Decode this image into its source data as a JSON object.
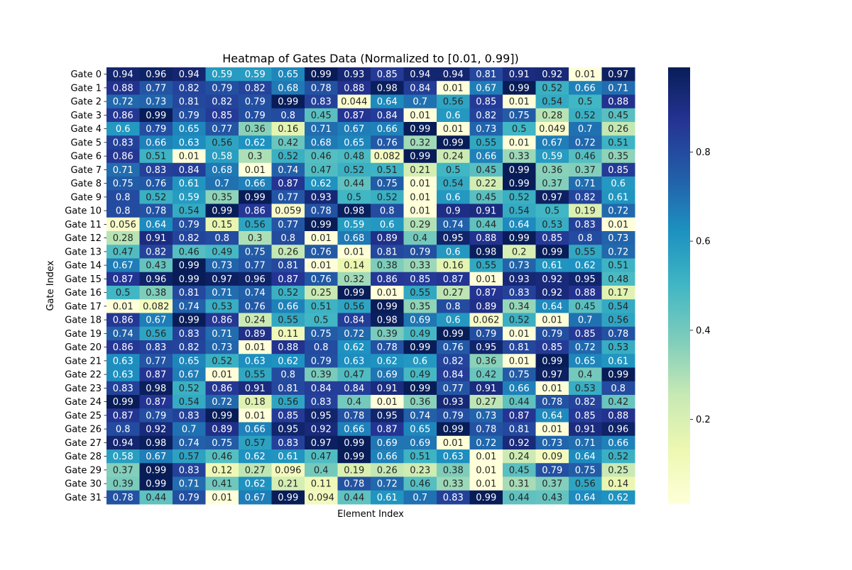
{
  "chart_data": {
    "type": "heatmap",
    "title": "Heatmap of Gates Data (Normalized to [0.01, 0.99])",
    "xlabel": "Element Index",
    "ylabel": "Gate Index",
    "rows": [
      "Gate 0",
      "Gate 1",
      "Gate 2",
      "Gate 3",
      "Gate 4",
      "Gate 5",
      "Gate 6",
      "Gate 7",
      "Gate 8",
      "Gate 9",
      "Gate 10",
      "Gate 11",
      "Gate 12",
      "Gate 13",
      "Gate 14",
      "Gate 15",
      "Gate 16",
      "Gate 17",
      "Gate 18",
      "Gate 19",
      "Gate 20",
      "Gate 21",
      "Gate 22",
      "Gate 23",
      "Gate 24",
      "Gate 25",
      "Gate 26",
      "Gate 27",
      "Gate 28",
      "Gate 29",
      "Gate 30",
      "Gate 31"
    ],
    "values": [
      [
        "0.94",
        "0.96",
        "0.94",
        "0.59",
        "0.59",
        "0.65",
        "0.99",
        "0.93",
        "0.85",
        "0.94",
        "0.94",
        "0.81",
        "0.91",
        "0.92",
        "0.01",
        "0.97"
      ],
      [
        "0.88",
        "0.77",
        "0.82",
        "0.79",
        "0.82",
        "0.68",
        "0.78",
        "0.88",
        "0.98",
        "0.84",
        "0.01",
        "0.67",
        "0.99",
        "0.52",
        "0.66",
        "0.71"
      ],
      [
        "0.72",
        "0.73",
        "0.81",
        "0.82",
        "0.79",
        "0.99",
        "0.83",
        "0.044",
        "0.64",
        "0.7",
        "0.56",
        "0.85",
        "0.01",
        "0.54",
        "0.5",
        "0.88"
      ],
      [
        "0.86",
        "0.99",
        "0.79",
        "0.85",
        "0.79",
        "0.8",
        "0.45",
        "0.87",
        "0.84",
        "0.01",
        "0.6",
        "0.82",
        "0.75",
        "0.28",
        "0.52",
        "0.45"
      ],
      [
        "0.6",
        "0.79",
        "0.65",
        "0.77",
        "0.36",
        "0.16",
        "0.71",
        "0.67",
        "0.66",
        "0.99",
        "0.01",
        "0.73",
        "0.5",
        "0.049",
        "0.7",
        "0.26"
      ],
      [
        "0.83",
        "0.66",
        "0.63",
        "0.56",
        "0.62",
        "0.42",
        "0.68",
        "0.65",
        "0.76",
        "0.32",
        "0.99",
        "0.55",
        "0.01",
        "0.67",
        "0.72",
        "0.51"
      ],
      [
        "0.86",
        "0.51",
        "0.01",
        "0.58",
        "0.3",
        "0.52",
        "0.46",
        "0.48",
        "0.082",
        "0.99",
        "0.24",
        "0.66",
        "0.33",
        "0.59",
        "0.46",
        "0.35"
      ],
      [
        "0.71",
        "0.83",
        "0.84",
        "0.68",
        "0.01",
        "0.74",
        "0.47",
        "0.52",
        "0.51",
        "0.21",
        "0.5",
        "0.45",
        "0.99",
        "0.36",
        "0.37",
        "0.85"
      ],
      [
        "0.75",
        "0.76",
        "0.61",
        "0.7",
        "0.66",
        "0.87",
        "0.62",
        "0.44",
        "0.75",
        "0.01",
        "0.54",
        "0.22",
        "0.99",
        "0.37",
        "0.71",
        "0.6"
      ],
      [
        "0.8",
        "0.52",
        "0.59",
        "0.35",
        "0.99",
        "0.77",
        "0.93",
        "0.5",
        "0.52",
        "0.01",
        "0.6",
        "0.45",
        "0.52",
        "0.97",
        "0.82",
        "0.61"
      ],
      [
        "0.8",
        "0.78",
        "0.54",
        "0.99",
        "0.86",
        "0.059",
        "0.78",
        "0.98",
        "0.8",
        "0.01",
        "0.9",
        "0.91",
        "0.54",
        "0.5",
        "0.19",
        "0.72"
      ],
      [
        "0.056",
        "0.64",
        "0.79",
        "0.15",
        "0.56",
        "0.77",
        "0.99",
        "0.59",
        "0.6",
        "0.29",
        "0.74",
        "0.44",
        "0.64",
        "0.53",
        "0.83",
        "0.01"
      ],
      [
        "0.28",
        "0.91",
        "0.82",
        "0.8",
        "0.3",
        "0.8",
        "0.01",
        "0.68",
        "0.89",
        "0.4",
        "0.95",
        "0.88",
        "0.99",
        "0.85",
        "0.8",
        "0.73"
      ],
      [
        "0.47",
        "0.82",
        "0.46",
        "0.49",
        "0.75",
        "0.26",
        "0.76",
        "0.01",
        "0.81",
        "0.79",
        "0.6",
        "0.98",
        "0.2",
        "0.99",
        "0.55",
        "0.72"
      ],
      [
        "0.67",
        "0.43",
        "0.99",
        "0.73",
        "0.77",
        "0.81",
        "0.01",
        "0.14",
        "0.38",
        "0.33",
        "0.16",
        "0.55",
        "0.73",
        "0.61",
        "0.62",
        "0.51"
      ],
      [
        "0.87",
        "0.96",
        "0.99",
        "0.97",
        "0.96",
        "0.87",
        "0.76",
        "0.32",
        "0.86",
        "0.85",
        "0.87",
        "0.01",
        "0.93",
        "0.92",
        "0.95",
        "0.48"
      ],
      [
        "0.5",
        "0.38",
        "0.81",
        "0.71",
        "0.74",
        "0.52",
        "0.25",
        "0.99",
        "0.01",
        "0.55",
        "0.27",
        "0.87",
        "0.83",
        "0.92",
        "0.88",
        "0.17"
      ],
      [
        "0.01",
        "0.082",
        "0.74",
        "0.53",
        "0.76",
        "0.66",
        "0.51",
        "0.56",
        "0.99",
        "0.35",
        "0.8",
        "0.89",
        "0.34",
        "0.64",
        "0.45",
        "0.54"
      ],
      [
        "0.86",
        "0.67",
        "0.99",
        "0.86",
        "0.24",
        "0.55",
        "0.5",
        "0.84",
        "0.98",
        "0.69",
        "0.6",
        "0.062",
        "0.52",
        "0.01",
        "0.7",
        "0.56"
      ],
      [
        "0.74",
        "0.56",
        "0.83",
        "0.71",
        "0.89",
        "0.11",
        "0.75",
        "0.72",
        "0.39",
        "0.49",
        "0.99",
        "0.79",
        "0.01",
        "0.79",
        "0.85",
        "0.78"
      ],
      [
        "0.86",
        "0.83",
        "0.82",
        "0.73",
        "0.01",
        "0.88",
        "0.8",
        "0.62",
        "0.78",
        "0.99",
        "0.76",
        "0.95",
        "0.81",
        "0.85",
        "0.72",
        "0.53"
      ],
      [
        "0.63",
        "0.77",
        "0.65",
        "0.52",
        "0.63",
        "0.62",
        "0.79",
        "0.63",
        "0.62",
        "0.6",
        "0.82",
        "0.36",
        "0.01",
        "0.99",
        "0.65",
        "0.61"
      ],
      [
        "0.63",
        "0.87",
        "0.67",
        "0.01",
        "0.55",
        "0.8",
        "0.39",
        "0.47",
        "0.69",
        "0.49",
        "0.84",
        "0.42",
        "0.75",
        "0.97",
        "0.4",
        "0.99"
      ],
      [
        "0.83",
        "0.98",
        "0.52",
        "0.86",
        "0.91",
        "0.81",
        "0.84",
        "0.84",
        "0.91",
        "0.99",
        "0.77",
        "0.91",
        "0.66",
        "0.01",
        "0.53",
        "0.8"
      ],
      [
        "0.99",
        "0.87",
        "0.54",
        "0.72",
        "0.18",
        "0.56",
        "0.83",
        "0.4",
        "0.01",
        "0.36",
        "0.93",
        "0.27",
        "0.44",
        "0.78",
        "0.82",
        "0.42"
      ],
      [
        "0.87",
        "0.79",
        "0.83",
        "0.99",
        "0.01",
        "0.85",
        "0.95",
        "0.78",
        "0.95",
        "0.74",
        "0.79",
        "0.73",
        "0.87",
        "0.64",
        "0.85",
        "0.88"
      ],
      [
        "0.8",
        "0.92",
        "0.7",
        "0.89",
        "0.66",
        "0.95",
        "0.92",
        "0.66",
        "0.87",
        "0.65",
        "0.99",
        "0.78",
        "0.81",
        "0.01",
        "0.91",
        "0.96"
      ],
      [
        "0.94",
        "0.98",
        "0.74",
        "0.75",
        "0.57",
        "0.83",
        "0.97",
        "0.99",
        "0.69",
        "0.69",
        "0.01",
        "0.72",
        "0.92",
        "0.73",
        "0.71",
        "0.66"
      ],
      [
        "0.58",
        "0.67",
        "0.57",
        "0.46",
        "0.62",
        "0.61",
        "0.47",
        "0.99",
        "0.66",
        "0.51",
        "0.63",
        "0.01",
        "0.24",
        "0.09",
        "0.64",
        "0.52"
      ],
      [
        "0.37",
        "0.99",
        "0.83",
        "0.12",
        "0.27",
        "0.096",
        "0.4",
        "0.19",
        "0.26",
        "0.23",
        "0.38",
        "0.01",
        "0.45",
        "0.79",
        "0.75",
        "0.25"
      ],
      [
        "0.39",
        "0.99",
        "0.71",
        "0.41",
        "0.62",
        "0.21",
        "0.11",
        "0.78",
        "0.72",
        "0.46",
        "0.33",
        "0.01",
        "0.31",
        "0.37",
        "0.56",
        "0.14"
      ],
      [
        "0.78",
        "0.44",
        "0.79",
        "0.01",
        "0.67",
        "0.99",
        "0.094",
        "0.44",
        "0.61",
        "0.7",
        "0.83",
        "0.99",
        "0.44",
        "0.43",
        "0.64",
        "0.62"
      ]
    ],
    "value_range": [
      0.01,
      0.99
    ],
    "colormap": "YlGnBu",
    "colorbar_ticks": [
      "0.2",
      "0.4",
      "0.6",
      "0.8"
    ],
    "colors": [
      "#ffffd9",
      "#edf8b1",
      "#c7e9b4",
      "#7fcdbb",
      "#41b6c4",
      "#1d91c0",
      "#225ea8",
      "#253494",
      "#081d58"
    ],
    "x_ticks_visible": false
  }
}
